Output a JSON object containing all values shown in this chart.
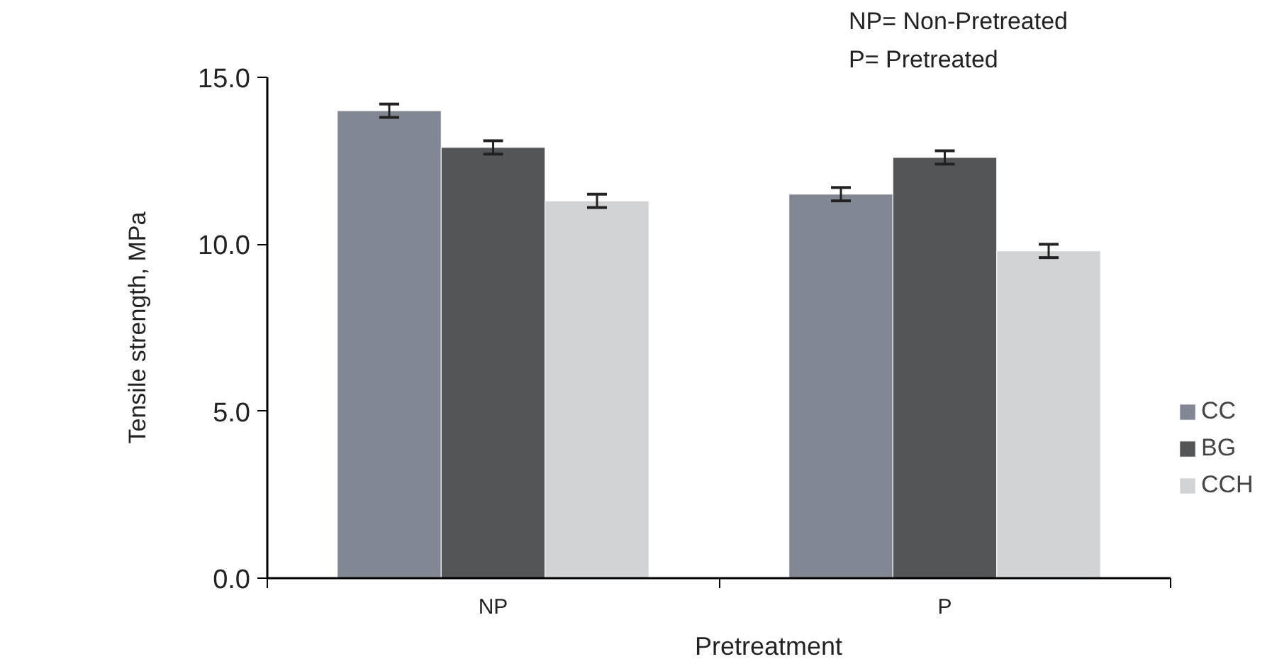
{
  "chart_data": {
    "type": "bar",
    "xlabel": "Pretreatment",
    "ylabel": "Tensile strength, MPa",
    "categories": [
      "NP",
      "P"
    ],
    "series": [
      {
        "name": "CC",
        "color": "#828893",
        "values": [
          14.0,
          11.5
        ],
        "errors": [
          0.2,
          0.2
        ]
      },
      {
        "name": "BG",
        "color": "#545557",
        "values": [
          12.9,
          12.6
        ],
        "errors": [
          0.2,
          0.2
        ]
      },
      {
        "name": "CCH",
        "color": "#d2d3d5",
        "values": [
          11.3,
          9.8
        ],
        "errors": [
          0.2,
          0.2
        ]
      }
    ],
    "ylim": [
      0,
      15
    ],
    "yticks": [
      {
        "value": 0,
        "label": "0.0"
      },
      {
        "value": 5,
        "label": "5.0"
      },
      {
        "value": 10,
        "label": "10.0"
      },
      {
        "value": 15,
        "label": "15.0"
      }
    ],
    "grid": false,
    "legend": "right",
    "annotations": [
      "NP= Non-Pretreated",
      "P= Pretreated"
    ]
  }
}
